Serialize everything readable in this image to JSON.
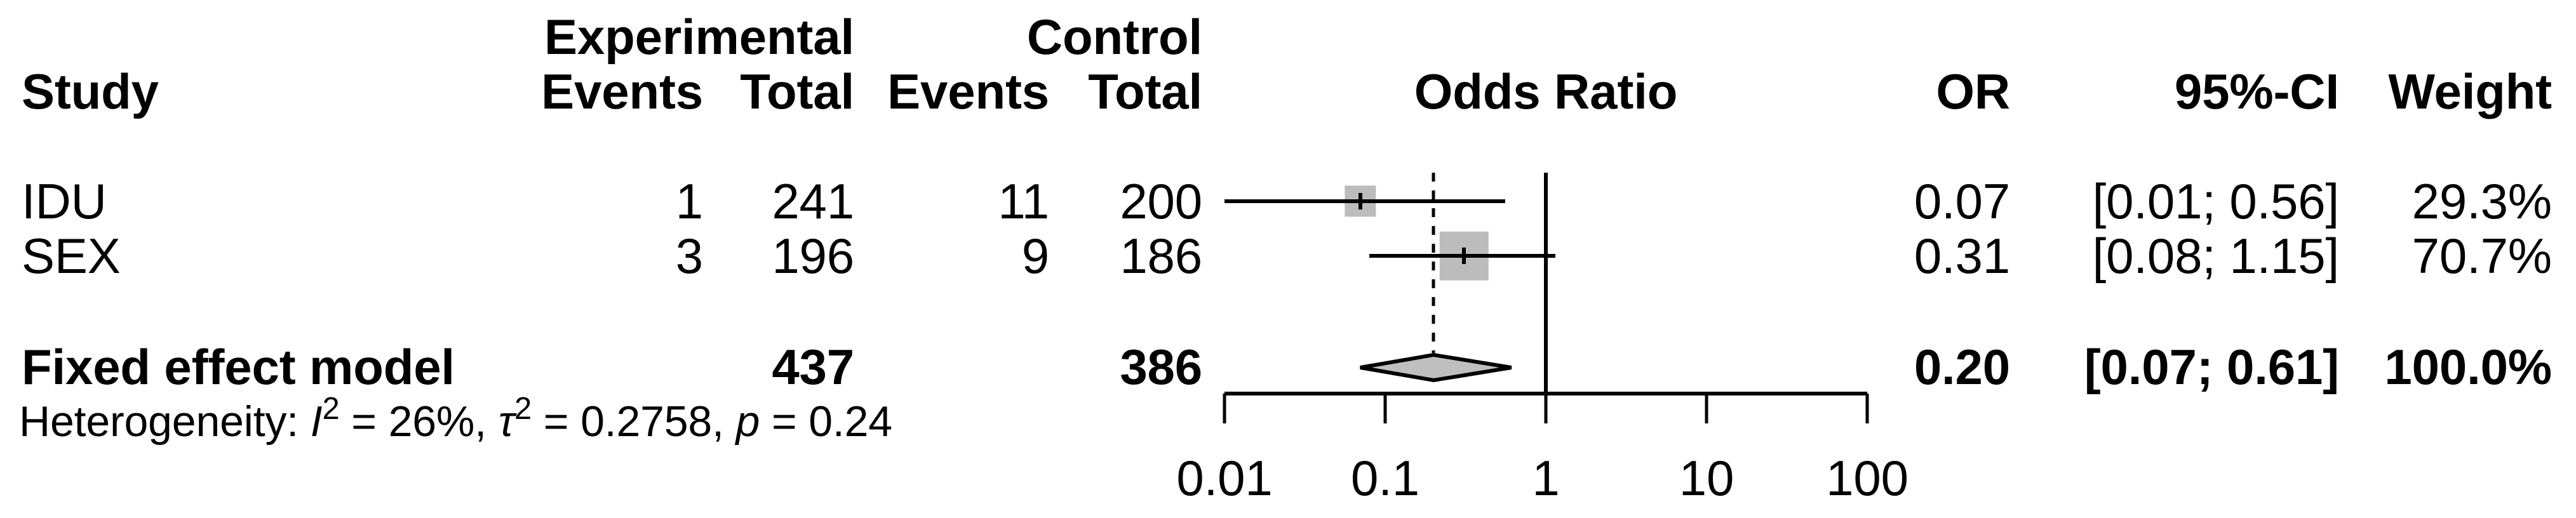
{
  "header": {
    "study": "Study",
    "experimental": "Experimental",
    "control": "Control",
    "exp_events": "Events",
    "exp_total": "Total",
    "ctrl_events": "Events",
    "ctrl_total": "Total",
    "odds_ratio": "Odds Ratio",
    "or": "OR",
    "ci": "95%-CI",
    "weight": "Weight"
  },
  "rows": [
    {
      "study": "IDU",
      "exp_events": "1",
      "exp_total": "241",
      "ctrl_events": "11",
      "ctrl_total": "200",
      "or": "0.07",
      "ci": "[0.01; 0.56]",
      "weight": "29.3%"
    },
    {
      "study": "SEX",
      "exp_events": "3",
      "exp_total": "196",
      "ctrl_events": "9",
      "ctrl_total": "186",
      "or": "0.31",
      "ci": "[0.08; 1.15]",
      "weight": "70.7%"
    }
  ],
  "summary_row": {
    "label": "Fixed effect model",
    "exp_total": "437",
    "ctrl_total": "386",
    "or": "0.20",
    "ci": "[0.07; 0.61]",
    "weight": "100.0%"
  },
  "heterogeneity": {
    "prefix": "Heterogeneity: ",
    "i": "I",
    "sup": "2",
    "i_rest": " = 26%, ",
    "tau": "τ",
    "tau_rest": " = 0.2758, ",
    "p": "p",
    "p_rest": " = 0.24"
  },
  "colors": {
    "square_fill": "#bcbcbc",
    "diamond_fill": "#bfbfbf",
    "line": "#000000",
    "background": "#ffffff"
  },
  "chart_data": {
    "type": "forest",
    "effect_measure": "Odds Ratio",
    "scale": "log10",
    "xlim": [
      0.01,
      100
    ],
    "x_ticks": [
      0.01,
      0.1,
      1,
      10,
      100
    ],
    "reference_line": 1,
    "summary_line": 0.2,
    "studies": [
      {
        "study": "IDU",
        "events_exp": 1,
        "total_exp": 241,
        "events_ctrl": 11,
        "total_ctrl": 200,
        "or": 0.07,
        "ci_low": 0.01,
        "ci_high": 0.56,
        "weight_pct": 29.3
      },
      {
        "study": "SEX",
        "events_exp": 3,
        "total_exp": 196,
        "events_ctrl": 9,
        "total_ctrl": 186,
        "or": 0.31,
        "ci_low": 0.08,
        "ci_high": 1.15,
        "weight_pct": 70.7
      }
    ],
    "summary": {
      "model": "Fixed effect model",
      "total_exp": 437,
      "total_ctrl": 386,
      "or": 0.2,
      "ci_low": 0.07,
      "ci_high": 0.61,
      "weight_pct": 100.0
    },
    "heterogeneity": {
      "I2_pct": 26,
      "tau2": 0.2758,
      "p": 0.24
    }
  }
}
